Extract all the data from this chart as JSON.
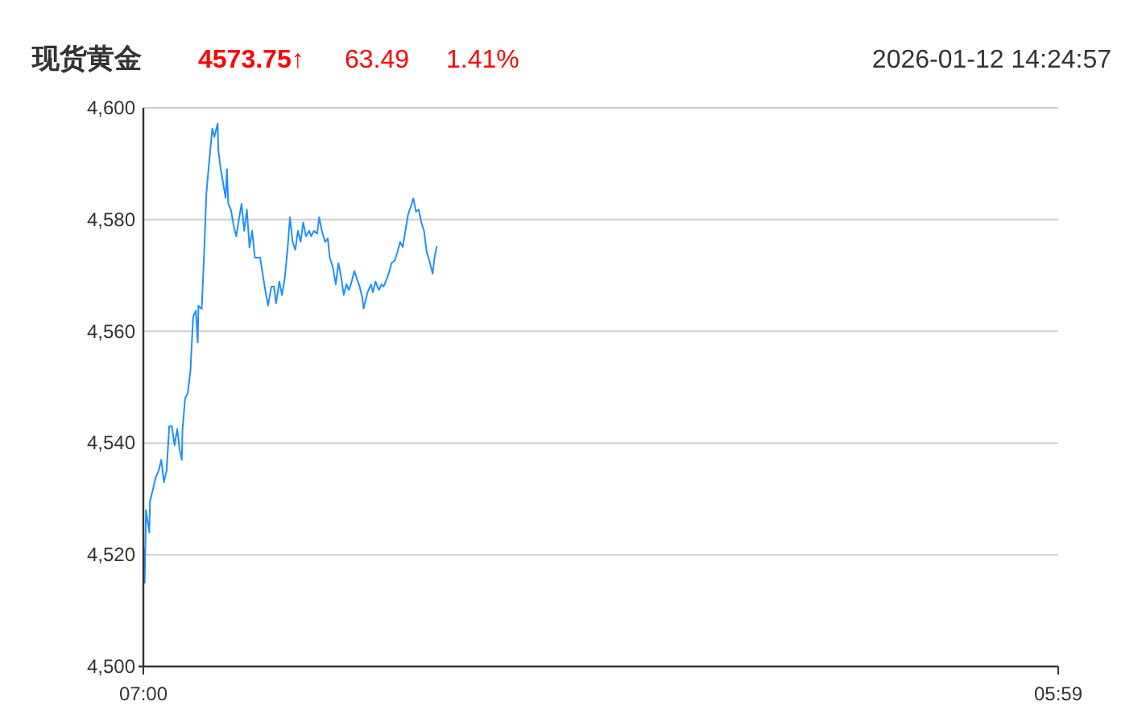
{
  "chart_data": {
    "type": "line",
    "title": "现货黄金",
    "annotations": [
      "4573.75↑",
      "63.49",
      "1.41%",
      "2026-01-12 14:24:57"
    ],
    "x": [
      "2026-01-12T07:00",
      "2026-01-12T07:01",
      "2026-01-12T07:02",
      "2026-01-12T07:04",
      "2026-01-12T07:09",
      "2026-01-12T07:10",
      "2026-01-12T07:19",
      "2026-01-12T07:23",
      "2026-01-12T07:27",
      "2026-01-12T07:31",
      "2026-01-12T07:35",
      "2026-01-12T07:39",
      "2026-01-12T07:43",
      "2026-01-12T07:47",
      "2026-01-12T07:51",
      "2026-01-12T07:55",
      "2026-01-12T07:58",
      "2026-01-12T07:59",
      "2026-01-12T08:03",
      "2026-01-12T08:07",
      "2026-01-12T08:11",
      "2026-01-12T08:15",
      "2026-01-12T08:19",
      "2026-01-12T08:22",
      "2026-01-12T08:23",
      "2026-01-12T08:28",
      "2026-01-12T08:32",
      "2026-01-12T08:35",
      "2026-01-12T08:40",
      "2026-01-12T08:44",
      "2026-01-12T08:47",
      "2026-01-12T08:52",
      "2026-01-12T08:53",
      "2026-01-12T08:56",
      "2026-01-12T09:00",
      "2026-01-12T09:04",
      "2026-01-12T09:06",
      "2026-01-12T09:08",
      "2026-01-12T09:12",
      "2026-01-12T09:16",
      "2026-01-12T09:20",
      "2026-01-12T09:24",
      "2026-01-12T09:28",
      "2026-01-12T09:32",
      "2026-01-12T09:36",
      "2026-01-12T09:40",
      "2026-01-12T09:44",
      "2026-01-12T09:48",
      "2026-01-12T09:56",
      "2026-01-12T10:01",
      "2026-01-12T10:05",
      "2026-01-12T10:08",
      "2026-01-12T10:13",
      "2026-01-12T10:17",
      "2026-01-12T10:20",
      "2026-01-12T10:25",
      "2026-01-12T10:29",
      "2026-01-12T10:33",
      "2026-01-12T10:37",
      "2026-01-12T10:41",
      "2026-01-12T10:45",
      "2026-01-12T10:49",
      "2026-01-12T10:53",
      "2026-01-12T10:57",
      "2026-01-12T11:01",
      "2026-01-12T11:05",
      "2026-01-12T11:10",
      "2026-01-12T11:13",
      "2026-01-12T11:17",
      "2026-01-12T11:22",
      "2026-01-12T11:25",
      "2026-01-12T11:29",
      "2026-01-12T11:34",
      "2026-01-12T11:38",
      "2026-01-12T11:41",
      "2026-01-12T11:46",
      "2026-01-12T11:50",
      "2026-01-12T11:54",
      "2026-01-12T11:58",
      "2026-01-12T12:02",
      "2026-01-12T12:06",
      "2026-01-12T12:10",
      "2026-01-12T12:14",
      "2026-01-12T12:18",
      "2026-01-12T12:22",
      "2026-01-12T12:26",
      "2026-01-12T12:30",
      "2026-01-12T12:32",
      "2026-01-12T12:38",
      "2026-01-12T12:43",
      "2026-01-12T12:46",
      "2026-01-12T12:50",
      "2026-01-12T12:55",
      "2026-01-12T12:59",
      "2026-01-12T13:02",
      "2026-01-12T13:07",
      "2026-01-12T13:11",
      "2026-01-12T13:14",
      "2026-01-12T13:19",
      "2026-01-12T13:23",
      "2026-01-12T13:27",
      "2026-01-12T13:31",
      "2026-01-12T13:35",
      "2026-01-12T13:39",
      "2026-01-12T13:43",
      "2026-01-12T13:47",
      "2026-01-12T13:51",
      "2026-01-12T13:55",
      "2026-01-12T13:59",
      "2026-01-12T14:03",
      "2026-01-12T14:07",
      "2026-01-12T14:11",
      "2026-01-12T14:16",
      "2026-01-12T14:19",
      "2026-01-12T14:22"
    ],
    "series": [
      {
        "color": "#1e90ff",
        "values": [
          4514,
          4521,
          4515,
          4528,
          4524,
          4529.5,
          4534,
          4535,
          4537,
          4533,
          4535,
          4543,
          4543,
          4539.6,
          4542.5,
          4538.6,
          4537,
          4542.5,
          4548,
          4549,
          4553,
          4562.6,
          4563.7,
          4558,
          4564.6,
          4564,
          4575,
          4584.7,
          4591.4,
          4596.3,
          4594.8,
          4597.2,
          4592.4,
          4589.6,
          4586.7,
          4583.9,
          4589,
          4582.8,
          4581.8,
          4579,
          4577,
          4580,
          4582.8,
          4578,
          4581.8,
          4575,
          4578,
          4573.2,
          4573.2,
          4569.4,
          4566.5,
          4564.6,
          4568,
          4568,
          4565,
          4568.9,
          4566.5,
          4569.4,
          4574.2,
          4580.4,
          4576,
          4574.6,
          4578,
          4576,
          4579.5,
          4577,
          4578,
          4577,
          4578,
          4577.5,
          4580.4,
          4578,
          4576,
          4576.6,
          4573.2,
          4571.3,
          4568.4,
          4572.2,
          4569.8,
          4566.5,
          4568.4,
          4567.4,
          4568.9,
          4570.8,
          4569.4,
          4568,
          4566,
          4564.1,
          4567,
          4568.4,
          4567,
          4568.9,
          4567.4,
          4568.4,
          4568,
          4569.4,
          4570.8,
          4572.2,
          4572.7,
          4574.2,
          4576,
          4575.1,
          4578,
          4580.9,
          4582.3,
          4583.8,
          4581.4,
          4581.8,
          4579.5,
          4578,
          4574.2,
          4572.7,
          4570.3,
          4573.2,
          4575.1
        ]
      }
    ],
    "xlim": [
      "2026-01-12T07:00",
      "2026-01-13T05:59"
    ],
    "xticks": [
      {
        "value": "2026-01-12T07:00",
        "label": "07:00"
      },
      {
        "value": "2026-01-13T05:59",
        "label": "05:59"
      }
    ],
    "ylim": [
      4500,
      4600
    ],
    "yticks": [
      {
        "value": 4500,
        "label": "4,500"
      },
      {
        "value": 4520,
        "label": "4,520"
      },
      {
        "value": 4540,
        "label": "4,540"
      },
      {
        "value": 4560,
        "label": "4,560"
      },
      {
        "value": 4580,
        "label": "4,580"
      },
      {
        "value": 4600,
        "label": "4,600"
      }
    ],
    "grid": "y"
  }
}
